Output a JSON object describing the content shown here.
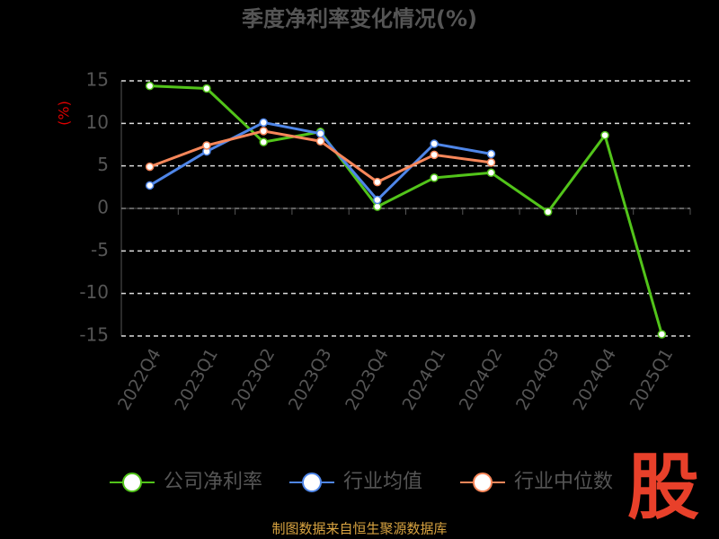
{
  "chart_data": {
    "type": "line",
    "title": "季度净利率变化情况(%)",
    "y_label": "(%)",
    "categories": [
      "2022Q4",
      "2023Q1",
      "2023Q2",
      "2023Q3",
      "2023Q4",
      "2024Q1",
      "2024Q2",
      "2024Q3",
      "2024Q4",
      "2025Q1"
    ],
    "series": [
      {
        "name": "公司净利率",
        "color": "#52c41a",
        "values": [
          14.4,
          14.1,
          7.8,
          9.0,
          0.2,
          3.6,
          4.2,
          -0.4,
          8.6,
          -14.8
        ]
      },
      {
        "name": "行业均值",
        "color": "#4f86e8",
        "values": [
          2.7,
          6.7,
          10.1,
          8.8,
          1.0,
          7.6,
          6.4,
          null,
          null,
          null
        ]
      },
      {
        "name": "行业中位数",
        "color": "#f7875a",
        "values": [
          4.9,
          7.4,
          9.1,
          7.9,
          3.1,
          6.3,
          5.4,
          null,
          null,
          null
        ]
      }
    ],
    "ylim": [
      -15,
      15
    ],
    "yticks": [
      -15,
      -10,
      -5,
      0,
      5,
      10,
      15
    ],
    "grid": true,
    "source": "制图数据来自恒生聚源数据库",
    "logo": "股"
  }
}
